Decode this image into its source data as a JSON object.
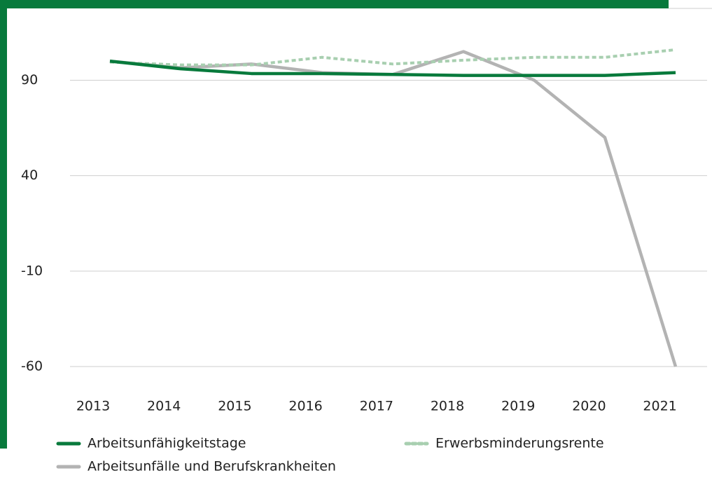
{
  "chart_data": {
    "type": "line",
    "x": [
      "2013",
      "2014",
      "2015",
      "2016",
      "2017",
      "2018",
      "2019",
      "2020",
      "2021"
    ],
    "series": [
      {
        "name": "Arbeitsunfähigkeitstage",
        "color": "#087a3c",
        "dash": false,
        "values": [
          100,
          96,
          93.5,
          93.5,
          93,
          92.5,
          92.5,
          92.5,
          94
        ]
      },
      {
        "name": "Erwerbsminderungsrente",
        "color": "#a8cfb0",
        "dash": true,
        "values": [
          99.5,
          98,
          98,
          102,
          98.5,
          100.5,
          102,
          102,
          106
        ]
      },
      {
        "name": "Arbeitsunfälle und Berufskrankheiten",
        "color": "#b3b3b3",
        "dash": false,
        "values": [
          100,
          96.5,
          98.5,
          94,
          93,
          105,
          90,
          60,
          -60
        ]
      }
    ],
    "ylim": [
      -60,
      110
    ],
    "yticks": [
      90,
      40,
      -10,
      -60
    ],
    "grid": true
  }
}
